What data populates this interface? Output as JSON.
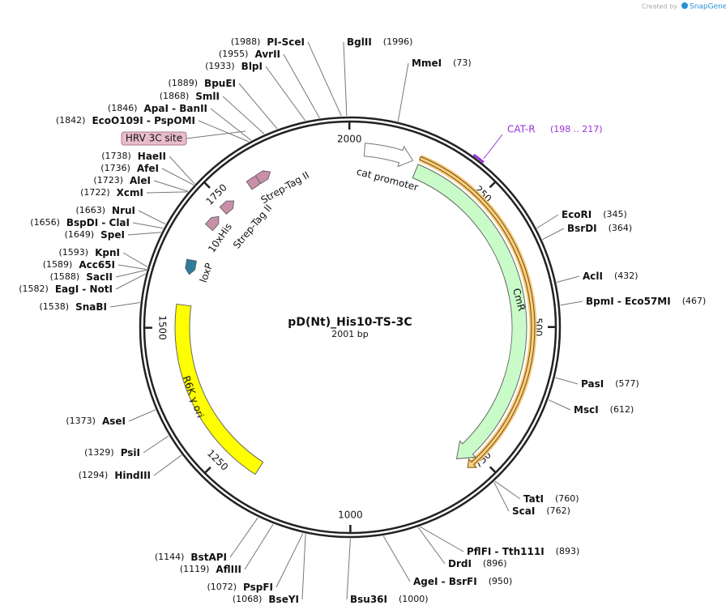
{
  "header": {
    "credit": "Created by",
    "brand": "SnapGene"
  },
  "map": {
    "name": "pD(Nt)_His10-TS-3C",
    "size": "2001 bp",
    "ticks": [
      250,
      500,
      750,
      1000,
      1250,
      1500,
      1750,
      2000
    ]
  },
  "features": [
    {
      "label": "cat promoter"
    },
    {
      "label": "CmR"
    },
    {
      "label": "R6K γ ori"
    },
    {
      "label": "loxP"
    },
    {
      "label": "10xHis"
    },
    {
      "label": "Strep-Tag II"
    },
    {
      "label": "Strep-Tag II"
    },
    {
      "label": "HRV 3C site"
    }
  ],
  "primer": {
    "label": "CAT-R",
    "range": "(198 .. 217)"
  },
  "sites": [
    {
      "name": "PI-SceI",
      "position": "(1988)"
    },
    {
      "name": "BglII",
      "position": "(1996)"
    },
    {
      "name": "MmeI",
      "position": "(73)"
    },
    {
      "name": "AvrII",
      "position": "(1955)"
    },
    {
      "name": "BlpI",
      "position": "(1933)"
    },
    {
      "name": "BpuEI",
      "position": "(1889)"
    },
    {
      "name": "SmlI",
      "position": "(1868)"
    },
    {
      "name": "ApaI - BanII",
      "position": "(1846)"
    },
    {
      "name": "EcoO109I - PspOMI",
      "position": "(1842)"
    },
    {
      "name": "HaeII",
      "position": "(1738)"
    },
    {
      "name": "AfeI",
      "position": "(1736)"
    },
    {
      "name": "AleI",
      "position": "(1723)"
    },
    {
      "name": "XcmI",
      "position": "(1722)"
    },
    {
      "name": "NruI",
      "position": "(1663)"
    },
    {
      "name": "BspDI - ClaI",
      "position": "(1656)"
    },
    {
      "name": "SpeI",
      "position": "(1649)"
    },
    {
      "name": "KpnI",
      "position": "(1593)"
    },
    {
      "name": "Acc65I",
      "position": "(1589)"
    },
    {
      "name": "SacII",
      "position": "(1588)"
    },
    {
      "name": "EagI - NotI",
      "position": "(1582)"
    },
    {
      "name": "SnaBI",
      "position": "(1538)"
    },
    {
      "name": "AseI",
      "position": "(1373)"
    },
    {
      "name": "PsiI",
      "position": "(1329)"
    },
    {
      "name": "HindIII",
      "position": "(1294)"
    },
    {
      "name": "BstAPI",
      "position": "(1144)"
    },
    {
      "name": "AflIII",
      "position": "(1119)"
    },
    {
      "name": "PspFI",
      "position": "(1072)"
    },
    {
      "name": "BseYI",
      "position": "(1068)"
    },
    {
      "name": "Bsu36I",
      "position": "(1000)"
    },
    {
      "name": "AgeI - BsrFI",
      "position": "(950)"
    },
    {
      "name": "DrdI",
      "position": "(896)"
    },
    {
      "name": "PflFI - Tth111I",
      "position": "(893)"
    },
    {
      "name": "ScaI",
      "position": "(762)"
    },
    {
      "name": "TatI",
      "position": "(760)"
    },
    {
      "name": "MscI",
      "position": "(612)"
    },
    {
      "name": "PasI",
      "position": "(577)"
    },
    {
      "name": "BpmI - Eco57MI",
      "position": "(467)"
    },
    {
      "name": "AclI",
      "position": "(432)"
    },
    {
      "name": "BsrDI",
      "position": "(364)"
    },
    {
      "name": "EcoRI",
      "position": "(345)"
    }
  ]
}
